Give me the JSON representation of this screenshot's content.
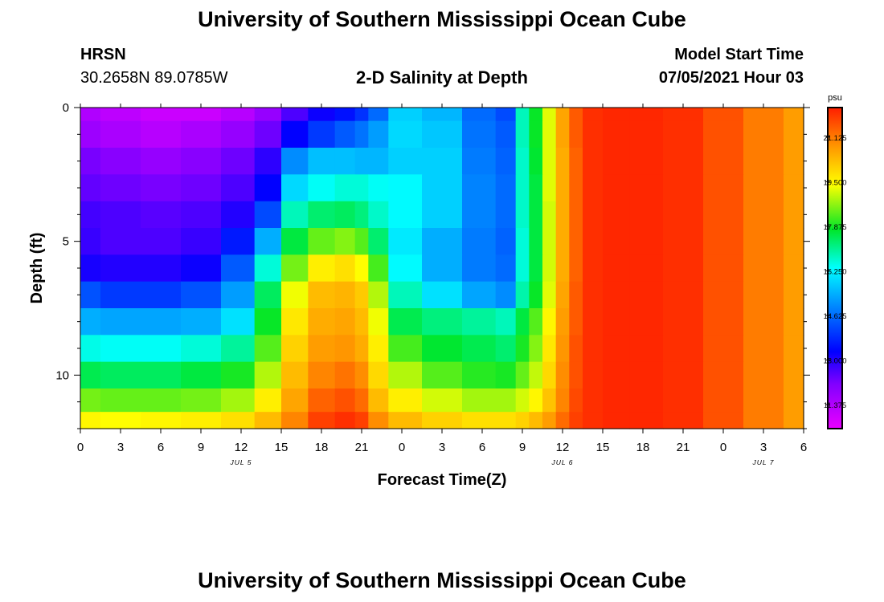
{
  "header": {
    "title_top": "University of Southern Mississippi Ocean Cube",
    "title_bottom": "University of Southern Mississippi Ocean Cube",
    "station": "HRSN",
    "coords": "30.2658N  89.0785W",
    "plot_title": "2-D Salinity at Depth",
    "model_label": "Model Start Time",
    "model_time": "07/05/2021 Hour 03"
  },
  "chart_data": {
    "type": "heatmap",
    "title": "2-D Salinity at Depth",
    "xlabel": "Forecast Time(Z)",
    "ylabel": "Depth (ft)",
    "x_range_hours": [
      0,
      54
    ],
    "y_range_ft": [
      0,
      12
    ],
    "x_ticks": [
      "0",
      "3",
      "6",
      "9",
      "12",
      "15",
      "18",
      "21",
      "0",
      "3",
      "6",
      "9",
      "12",
      "15",
      "18",
      "21",
      "0",
      "3",
      "6"
    ],
    "y_ticks": [
      "0",
      "5",
      "10"
    ],
    "date_labels": [
      {
        "label": "JUL 5",
        "hour": 12
      },
      {
        "label": "JUL 6",
        "hour": 36
      },
      {
        "label": "JUL 7",
        "hour": 51
      }
    ],
    "colorbar": {
      "unit": "psu",
      "min": 10.5,
      "max": 22.2,
      "ticks": [
        "21.125",
        "19.500",
        "17.875",
        "16.250",
        "14.625",
        "13.000",
        "11.375"
      ],
      "tick_values": [
        21.125,
        19.5,
        17.875,
        16.25,
        14.625,
        13.0,
        11.375
      ]
    },
    "depth_levels_ft": [
      0.0,
      1.0,
      2.0,
      3.0,
      4.0,
      5.0,
      6.0,
      7.0,
      8.0,
      9.0,
      10.0,
      11.0,
      11.75
    ],
    "time_hours": [
      0,
      3,
      6,
      9,
      12,
      14,
      16,
      18,
      20,
      21,
      22,
      24,
      27,
      30,
      32,
      33,
      34,
      35,
      36,
      37,
      38,
      40,
      42,
      45,
      48,
      51,
      54
    ],
    "salinity_psu": [
      [
        11.4,
        11.2,
        11.0,
        11.0,
        11.3,
        11.8,
        12.6,
        13.2,
        13.5,
        13.9,
        14.6,
        15.8,
        15.5,
        14.6,
        14.2,
        16.8,
        17.8,
        19.2,
        20.6,
        21.5,
        22.0,
        22.1,
        22.1,
        22.0,
        21.6,
        21.1,
        20.7
      ],
      [
        11.7,
        11.5,
        11.3,
        11.5,
        11.8,
        12.3,
        13.3,
        14.0,
        14.4,
        14.7,
        15.2,
        15.9,
        15.7,
        14.7,
        14.4,
        16.8,
        17.8,
        19.2,
        20.6,
        21.5,
        22.0,
        22.1,
        22.1,
        22.0,
        21.6,
        21.1,
        20.7
      ],
      [
        12.2,
        12.0,
        11.8,
        12.0,
        12.3,
        12.9,
        15.0,
        15.6,
        15.6,
        15.5,
        15.5,
        15.8,
        15.8,
        14.8,
        14.5,
        16.7,
        17.7,
        19.2,
        20.5,
        21.4,
        22.0,
        22.1,
        22.1,
        22.0,
        21.6,
        21.1,
        20.7
      ],
      [
        12.4,
        12.3,
        12.2,
        12.3,
        12.6,
        13.3,
        15.9,
        16.4,
        16.6,
        16.6,
        16.4,
        16.3,
        15.8,
        14.9,
        14.6,
        16.7,
        17.6,
        19.2,
        20.5,
        21.4,
        22.0,
        22.1,
        22.1,
        22.0,
        21.6,
        21.1,
        20.7
      ],
      [
        12.7,
        12.6,
        12.5,
        12.6,
        13.0,
        14.2,
        16.8,
        17.3,
        17.4,
        17.2,
        16.7,
        16.3,
        15.8,
        14.9,
        14.6,
        16.7,
        17.6,
        19.1,
        20.5,
        21.4,
        22.0,
        22.1,
        22.1,
        22.0,
        21.6,
        21.1,
        20.7
      ],
      [
        12.8,
        12.6,
        12.6,
        12.8,
        13.6,
        15.4,
        17.6,
        18.4,
        18.6,
        18.3,
        17.3,
        16.1,
        15.4,
        14.8,
        14.5,
        16.6,
        17.6,
        19.1,
        20.5,
        21.4,
        22.0,
        22.1,
        22.1,
        22.0,
        21.6,
        21.1,
        20.7
      ],
      [
        13.1,
        13.0,
        13.0,
        13.2,
        14.4,
        16.6,
        18.5,
        19.6,
        19.8,
        19.4,
        18.2,
        16.3,
        15.4,
        14.8,
        14.6,
        16.6,
        17.6,
        19.1,
        20.5,
        21.4,
        22.0,
        22.1,
        22.1,
        22.0,
        21.6,
        21.1,
        20.7
      ],
      [
        14.3,
        14.0,
        14.0,
        14.3,
        15.2,
        17.4,
        19.3,
        20.3,
        20.4,
        20.1,
        18.9,
        16.8,
        16.0,
        15.3,
        15.0,
        16.9,
        17.8,
        19.2,
        20.6,
        21.5,
        22.0,
        22.1,
        22.1,
        22.0,
        21.6,
        21.1,
        20.7
      ],
      [
        15.4,
        15.3,
        15.3,
        15.4,
        16.0,
        17.8,
        19.7,
        20.5,
        20.6,
        20.3,
        19.3,
        17.5,
        17.2,
        17.0,
        16.8,
        17.6,
        18.3,
        19.5,
        20.7,
        21.5,
        22.0,
        22.1,
        22.1,
        22.0,
        21.6,
        21.1,
        20.7
      ],
      [
        16.5,
        16.4,
        16.4,
        16.6,
        17.0,
        18.3,
        20.0,
        20.7,
        20.8,
        20.5,
        19.6,
        18.2,
        17.7,
        17.5,
        17.3,
        17.9,
        18.6,
        19.7,
        20.8,
        21.6,
        22.0,
        22.1,
        22.1,
        22.0,
        21.6,
        21.1,
        20.7
      ],
      [
        17.5,
        17.4,
        17.4,
        17.6,
        17.9,
        18.9,
        20.3,
        21.0,
        21.2,
        20.9,
        19.9,
        18.9,
        18.3,
        18.0,
        17.9,
        18.4,
        19.0,
        19.9,
        20.9,
        21.6,
        22.0,
        22.1,
        22.1,
        22.0,
        21.6,
        21.1,
        20.7
      ],
      [
        18.5,
        18.4,
        18.4,
        18.5,
        18.8,
        19.6,
        20.6,
        21.4,
        21.6,
        21.3,
        20.3,
        19.6,
        19.1,
        18.8,
        18.8,
        19.1,
        19.5,
        20.2,
        21.0,
        21.7,
        22.0,
        22.1,
        22.1,
        22.0,
        21.6,
        21.1,
        20.7
      ],
      [
        19.5,
        19.4,
        19.5,
        19.6,
        19.8,
        20.3,
        21.0,
        21.8,
        22.0,
        21.8,
        20.9,
        20.3,
        20.0,
        19.8,
        19.8,
        20.0,
        20.3,
        20.7,
        21.3,
        21.8,
        22.0,
        22.1,
        22.1,
        22.0,
        21.6,
        21.1,
        20.7
      ]
    ]
  }
}
